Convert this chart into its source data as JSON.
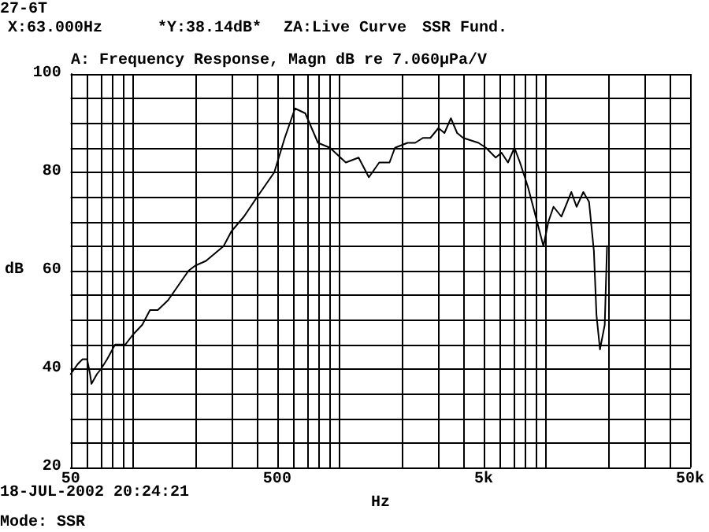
{
  "chart_data": {
    "type": "line",
    "title": "A: Frequency Response, Magn dB re 7.060μPa/V",
    "xlabel": "Hz",
    "ylabel": "dB",
    "annotations": [
      "27-6T",
      "X:63.000Hz",
      "*Y:38.14dB*",
      "ZA:Live Curve",
      "SSR Fund.",
      "18-JUL-2002 20:24:21",
      "Mode: SSR"
    ],
    "log": "x",
    "grid": true,
    "marker": "none",
    "line_style": "solid",
    "xlim": [
      50,
      50000
    ],
    "ylim": [
      20,
      100
    ],
    "xticks": [
      50,
      {
        "value": 60,
        "label": null
      },
      {
        "value": 70,
        "label": null
      },
      {
        "value": 80,
        "label": null
      },
      {
        "value": 90,
        "label": null
      },
      {
        "value": 100,
        "label": null
      },
      {
        "value": 200,
        "label": null
      },
      {
        "value": 300,
        "label": null
      },
      {
        "value": 400,
        "label": null
      },
      500,
      {
        "value": 600,
        "label": null
      },
      {
        "value": 700,
        "label": null
      },
      {
        "value": 800,
        "label": null
      },
      {
        "value": 900,
        "label": null
      },
      {
        "value": 1000,
        "label": null
      },
      {
        "value": 2000,
        "label": null
      },
      {
        "value": 3000,
        "label": null
      },
      {
        "value": 4000,
        "label": null
      },
      {
        "value": 5000,
        "label": "5k"
      },
      {
        "value": 6000,
        "label": null
      },
      {
        "value": 7000,
        "label": null
      },
      {
        "value": 8000,
        "label": null
      },
      {
        "value": 9000,
        "label": null
      },
      {
        "value": 10000,
        "label": null
      },
      {
        "value": 20000,
        "label": null
      },
      {
        "value": 30000,
        "label": null
      },
      {
        "value": 40000,
        "label": null
      },
      {
        "value": 50000,
        "label": "50k"
      }
    ],
    "yticks": [
      20,
      {
        "value": 25,
        "label": null
      },
      {
        "value": 30,
        "label": null
      },
      {
        "value": 35,
        "label": null
      },
      40,
      {
        "value": 45,
        "label": null
      },
      {
        "value": 50,
        "label": null
      },
      {
        "value": 55,
        "label": null
      },
      60,
      {
        "value": 65,
        "label": null
      },
      {
        "value": 70,
        "label": null
      },
      {
        "value": 75,
        "label": null
      },
      80,
      {
        "value": 85,
        "label": null
      },
      {
        "value": 90,
        "label": null
      },
      {
        "value": 95,
        "label": null
      },
      100
    ],
    "series": [
      {
        "color": "#000000",
        "x": [
          50,
          54,
          57,
          60,
          62,
          63,
          67,
          70,
          75,
          82,
          92,
          100,
          111,
          121,
          132,
          148,
          166,
          186,
          200,
          226,
          275,
          300,
          345,
          400,
          484,
          544,
          610,
          684,
          788,
          900,
          1075,
          1240,
          1390,
          1560,
          1750,
          1860,
          2140,
          2330,
          2540,
          2760,
          3020,
          3230,
          3470,
          3720,
          3980,
          4720,
          5130,
          5720,
          6100,
          6560,
          7050,
          7500,
          8200,
          8940,
          9740,
          10300,
          10900,
          11900,
          13300,
          14100,
          15200,
          16200,
          17100,
          17600,
          18300,
          19300,
          19800
        ],
        "values": [
          39,
          41,
          42,
          42,
          39,
          37,
          39,
          40,
          42,
          45,
          45,
          47,
          49,
          52,
          52,
          54,
          57,
          60,
          61,
          62,
          65,
          68,
          71,
          75,
          80,
          87,
          93,
          92,
          86,
          85,
          82,
          83,
          79,
          82,
          82,
          85,
          86,
          86,
          87,
          87,
          89,
          88,
          91,
          88,
          87,
          86,
          85,
          83,
          84,
          82,
          85,
          82,
          77,
          71,
          65,
          70,
          73,
          71,
          76,
          73,
          76,
          74,
          64,
          51,
          44,
          49,
          65
        ]
      }
    ]
  }
}
